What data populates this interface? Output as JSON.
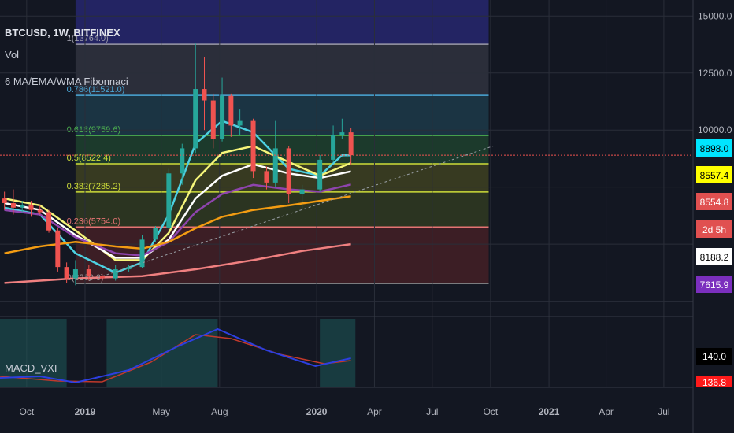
{
  "header": {
    "symbol_line": "BTCUSD, 1W, BITFINEX",
    "volume_label": "Vol",
    "indicator_label": "6 MA/EMA/WMA Fibonnaci"
  },
  "macd_pane": {
    "label": "MACD_VXI",
    "values": [
      "140.0",
      "136.8"
    ]
  },
  "price_axis": {
    "ticks": [
      "15000.0",
      "12500.0",
      "10000.0"
    ],
    "badges": [
      {
        "text": "8898.0",
        "bg": "#00e5ff",
        "fg": "#000000"
      },
      {
        "text": "8557.4",
        "bg": "#ffff00",
        "fg": "#000000"
      },
      {
        "text": "8554.8",
        "bg": "#e05050",
        "fg": "#ffffff"
      },
      {
        "text": "2d 5h",
        "bg": "#e05050",
        "fg": "#ffffff"
      },
      {
        "text": "8188.2",
        "bg": "#ffffff",
        "fg": "#000000"
      },
      {
        "text": "7615.9",
        "bg": "#7b2fbe",
        "fg": "#ffffff"
      }
    ]
  },
  "time_axis": {
    "labels": [
      {
        "t": "Oct",
        "bold": false
      },
      {
        "t": "2019",
        "bold": true
      },
      {
        "t": "May",
        "bold": false
      },
      {
        "t": "Aug",
        "bold": false
      },
      {
        "t": "2020",
        "bold": true
      },
      {
        "t": "Apr",
        "bold": false
      },
      {
        "t": "Jul",
        "bold": false
      },
      {
        "t": "Oct",
        "bold": false
      },
      {
        "t": "2021",
        "bold": true
      },
      {
        "t": "Apr",
        "bold": false
      },
      {
        "t": "Jul",
        "bold": false
      }
    ]
  },
  "fib_levels": [
    {
      "label": "1(13764.0)",
      "price": 13764.0
    },
    {
      "label": "0.786(11521.0)",
      "price": 11521.0
    },
    {
      "label": "0.618(9759.6)",
      "price": 9759.6
    },
    {
      "label": "0.5(8522.4)",
      "price": 8522.4
    },
    {
      "label": "0.382(7285.2)",
      "price": 7285.2
    },
    {
      "label": "0.236(5754.0)",
      "price": 5754.0
    },
    {
      "label": "0(3280.0)",
      "price": 3280.0
    }
  ],
  "colors": {
    "background": "#131722",
    "up_candle": "#26a69a",
    "down_candle": "#ef5350",
    "ma_cyan": "#4dd0e1",
    "ma_yellow": "#f5f57a",
    "ma_white": "#ffffff",
    "ma_purple": "#8e44ad",
    "ma_orange": "#f39c12",
    "ma_salmon": "#f08080",
    "macd_line": "#2d3fe0",
    "signal_line": "#c0392b"
  },
  "chart_data": {
    "type": "line",
    "title": "BTCUSD, 1W, BITFINEX",
    "xlabel": "",
    "ylabel": "",
    "ylim": [
      1900,
      15700
    ],
    "x_range": [
      "2018-08-20",
      "2021-08-16"
    ],
    "grid": true,
    "candles": [
      [
        "2018-08-27",
        7000,
        7300,
        6500,
        6800
      ],
      [
        "2018-09-10",
        6800,
        7400,
        6300,
        6600
      ],
      [
        "2018-09-24",
        6600,
        6900,
        6400,
        6700
      ],
      [
        "2018-10-08",
        6700,
        6900,
        6200,
        6500
      ],
      [
        "2018-10-22",
        6500,
        6700,
        6300,
        6400
      ],
      [
        "2018-11-05",
        6400,
        6500,
        5500,
        5600
      ],
      [
        "2018-11-19",
        5600,
        5700,
        3800,
        4000
      ],
      [
        "2018-12-03",
        4000,
        4200,
        3300,
        3500
      ],
      [
        "2018-12-17",
        3500,
        4300,
        3200,
        3900
      ],
      [
        "2019-01-07",
        3900,
        4100,
        3400,
        3600
      ],
      [
        "2019-01-28",
        3600,
        3700,
        3400,
        3500
      ],
      [
        "2019-02-18",
        3500,
        4100,
        3400,
        3900
      ],
      [
        "2019-03-11",
        3900,
        4100,
        3800,
        4000
      ],
      [
        "2019-04-01",
        4000,
        5400,
        3950,
        5200
      ],
      [
        "2019-04-22",
        5200,
        5800,
        5100,
        5700
      ],
      [
        "2019-05-13",
        5700,
        8300,
        5600,
        8100
      ],
      [
        "2019-06-03",
        8100,
        9400,
        7600,
        9200
      ],
      [
        "2019-06-24",
        9200,
        13800,
        9000,
        11800
      ],
      [
        "2019-07-08",
        11800,
        13200,
        10000,
        11300
      ],
      [
        "2019-07-22",
        11300,
        11600,
        9200,
        9600
      ],
      [
        "2019-08-05",
        9600,
        12300,
        9500,
        11500
      ],
      [
        "2019-08-19",
        11500,
        11600,
        9700,
        10200
      ],
      [
        "2019-09-02",
        10200,
        10900,
        9800,
        10400
      ],
      [
        "2019-09-23",
        10400,
        10500,
        7900,
        8200
      ],
      [
        "2019-10-14",
        8200,
        8400,
        7400,
        7700
      ],
      [
        "2019-10-28",
        7700,
        10400,
        7500,
        9200
      ],
      [
        "2019-11-18",
        9200,
        9300,
        6800,
        7200
      ],
      [
        "2019-12-09",
        7200,
        7600,
        6500,
        7400
      ],
      [
        "2020-01-06",
        7400,
        8900,
        7300,
        8700
      ],
      [
        "2020-01-27",
        8700,
        10200,
        8600,
        9800
      ],
      [
        "2020-02-10",
        9800,
        10500,
        9600,
        9900
      ],
      [
        "2020-02-24",
        9900,
        10100,
        8500,
        8898
      ]
    ],
    "series": [
      {
        "values": [
          [
            "2018-08-27",
            6600
          ],
          [
            "2018-10-22",
            6300
          ],
          [
            "2018-12-17",
            4600
          ],
          [
            "2019-02-18",
            3750
          ],
          [
            "2019-04-01",
            4200
          ],
          [
            "2019-05-13",
            6300
          ],
          [
            "2019-06-24",
            9400
          ],
          [
            "2019-08-05",
            10400
          ],
          [
            "2019-09-23",
            9900
          ],
          [
            "2019-11-18",
            8300
          ],
          [
            "2020-01-06",
            8000
          ],
          [
            "2020-02-10",
            8900
          ],
          [
            "2020-02-24",
            8898
          ]
        ]
      },
      {
        "values": [
          [
            "2018-08-27",
            7000
          ],
          [
            "2018-10-22",
            6700
          ],
          [
            "2018-12-17",
            5600
          ],
          [
            "2019-02-18",
            4300
          ],
          [
            "2019-04-01",
            4300
          ],
          [
            "2019-05-13",
            5500
          ],
          [
            "2019-06-24",
            7800
          ],
          [
            "2019-08-05",
            9000
          ],
          [
            "2019-09-23",
            9300
          ],
          [
            "2019-11-18",
            8600
          ],
          [
            "2020-01-06",
            8000
          ],
          [
            "2020-02-24",
            8557.4
          ]
        ]
      },
      {
        "values": [
          [
            "2018-08-27",
            6800
          ],
          [
            "2018-10-22",
            6500
          ],
          [
            "2018-12-17",
            5400
          ],
          [
            "2019-02-18",
            4400
          ],
          [
            "2019-04-01",
            4400
          ],
          [
            "2019-05-13",
            5200
          ],
          [
            "2019-06-24",
            7000
          ],
          [
            "2019-08-05",
            8000
          ],
          [
            "2019-09-23",
            8500
          ],
          [
            "2019-11-18",
            8100
          ],
          [
            "2020-01-06",
            7900
          ],
          [
            "2020-02-24",
            8188.2
          ]
        ]
      },
      {
        "values": [
          [
            "2018-08-27",
            6500
          ],
          [
            "2018-10-22",
            6300
          ],
          [
            "2018-12-17",
            5300
          ],
          [
            "2019-02-18",
            4600
          ],
          [
            "2019-04-01",
            4500
          ],
          [
            "2019-05-13",
            5100
          ],
          [
            "2019-06-24",
            6400
          ],
          [
            "2019-08-05",
            7200
          ],
          [
            "2019-09-23",
            7600
          ],
          [
            "2019-11-18",
            7400
          ],
          [
            "2020-01-06",
            7300
          ],
          [
            "2020-02-24",
            7615.9
          ]
        ]
      },
      {
        "values": [
          [
            "2018-08-27",
            4600
          ],
          [
            "2018-10-22",
            4900
          ],
          [
            "2018-12-17",
            5100
          ],
          [
            "2019-02-18",
            4900
          ],
          [
            "2019-04-01",
            4800
          ],
          [
            "2019-05-13",
            5100
          ],
          [
            "2019-06-24",
            5700
          ],
          [
            "2019-08-05",
            6200
          ],
          [
            "2019-09-23",
            6500
          ],
          [
            "2019-11-18",
            6700
          ],
          [
            "2020-01-06",
            6900
          ],
          [
            "2020-02-24",
            7100
          ]
        ]
      },
      {
        "values": [
          [
            "2018-08-27",
            3300
          ],
          [
            "2018-12-17",
            3500
          ],
          [
            "2019-04-01",
            3600
          ],
          [
            "2019-06-24",
            3900
          ],
          [
            "2019-09-23",
            4300
          ],
          [
            "2019-12-09",
            4700
          ],
          [
            "2020-02-24",
            5000
          ]
        ]
      }
    ]
  }
}
